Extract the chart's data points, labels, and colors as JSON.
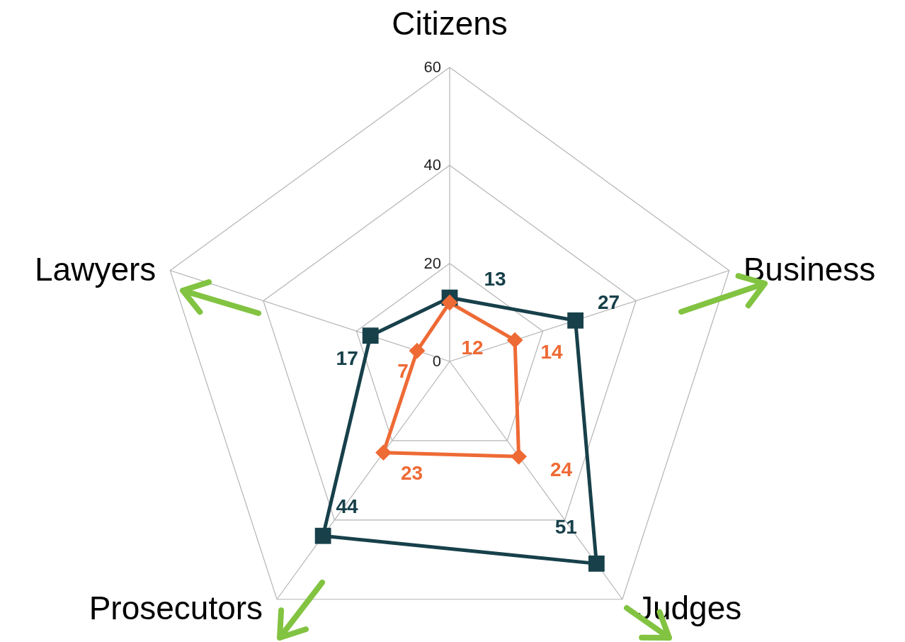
{
  "chart_data": {
    "type": "radar",
    "categories": [
      "Citizens",
      "Business",
      "Judges",
      "Prosecutors",
      "Lawyers"
    ],
    "series": [
      {
        "color": "#17404a",
        "marker": "square",
        "values": [
          13,
          27,
          51,
          44,
          17
        ]
      },
      {
        "color": "#ee6a35",
        "marker": "diamond",
        "values": [
          12,
          14,
          24,
          23,
          7
        ]
      }
    ],
    "ylim": [
      0,
      60
    ],
    "yticks": [
      0,
      20,
      40,
      60
    ],
    "grid": true,
    "data_labels": true
  }
}
